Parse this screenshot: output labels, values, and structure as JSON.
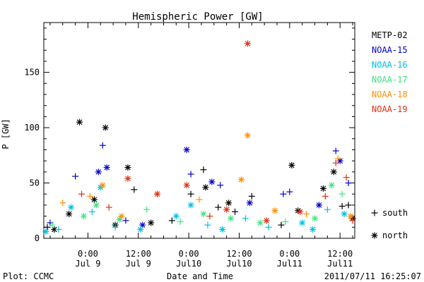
{
  "chart_data": {
    "type": "scatter",
    "title": "Hemispheric Power [GW]",
    "ylabel": "P [GW]",
    "xlabel": "Date and Time",
    "ylim": [
      0,
      195
    ],
    "xlim": [
      "2011-07-08 13:30",
      "2011-07-11 15:30"
    ],
    "x_unit": "date-time (UTC)",
    "yticks": [
      0,
      50,
      100,
      150
    ],
    "xticks": [
      {
        "x": "2011-07-09 00:00",
        "time": "0:00",
        "date": "Jul 9"
      },
      {
        "x": "2011-07-09 12:00",
        "time": "12:00",
        "date": "Jul 9"
      },
      {
        "x": "2011-07-10 00:00",
        "time": "0:00",
        "date": "Jul10"
      },
      {
        "x": "2011-07-10 12:00",
        "time": "12:00",
        "date": "Jul10"
      },
      {
        "x": "2011-07-11 00:00",
        "time": "0:00",
        "date": "Jul11"
      },
      {
        "x": "2011-07-11 12:00",
        "time": "12:00",
        "date": "Jul11"
      }
    ],
    "grid": false,
    "legend_position": "right",
    "series": [
      {
        "name": "METP-02",
        "color": "#000000",
        "points": [
          {
            "x": "2011-07-08 14:20",
            "y": 10,
            "marker": "south"
          },
          {
            "x": "2011-07-08 16:00",
            "y": 8,
            "marker": "north"
          },
          {
            "x": "2011-07-08 19:30",
            "y": 22,
            "marker": "north"
          },
          {
            "x": "2011-07-08 22:00",
            "y": 105,
            "marker": "north"
          },
          {
            "x": "2011-07-09 01:30",
            "y": 35,
            "marker": "north"
          },
          {
            "x": "2011-07-09 04:10",
            "y": 100,
            "marker": "north"
          },
          {
            "x": "2011-07-09 06:30",
            "y": 12,
            "marker": "north"
          },
          {
            "x": "2011-07-09 09:30",
            "y": 64,
            "marker": "north"
          },
          {
            "x": "2011-07-09 11:00",
            "y": 44,
            "marker": "south"
          },
          {
            "x": "2011-07-09 15:00",
            "y": 14,
            "marker": "north"
          },
          {
            "x": "2011-07-09 20:00",
            "y": 16,
            "marker": "south"
          },
          {
            "x": "2011-07-10 00:30",
            "y": 40,
            "marker": "south"
          },
          {
            "x": "2011-07-10 03:30",
            "y": 62,
            "marker": "south"
          },
          {
            "x": "2011-07-10 04:00",
            "y": 46,
            "marker": "north"
          },
          {
            "x": "2011-07-10 07:00",
            "y": 28,
            "marker": "south"
          },
          {
            "x": "2011-07-10 09:30",
            "y": 32,
            "marker": "north"
          },
          {
            "x": "2011-07-10 11:00",
            "y": 24,
            "marker": "south"
          },
          {
            "x": "2011-07-10 15:00",
            "y": 38,
            "marker": "south"
          },
          {
            "x": "2011-07-10 22:00",
            "y": 12,
            "marker": "south"
          },
          {
            "x": "2011-07-11 00:30",
            "y": 66,
            "marker": "north"
          },
          {
            "x": "2011-07-11 02:00",
            "y": 25,
            "marker": "north"
          },
          {
            "x": "2011-07-11 08:00",
            "y": 45,
            "marker": "north"
          },
          {
            "x": "2011-07-11 10:30",
            "y": 60,
            "marker": "north"
          },
          {
            "x": "2011-07-11 12:30",
            "y": 29,
            "marker": "south"
          },
          {
            "x": "2011-07-11 14:00",
            "y": 30,
            "marker": "south"
          },
          {
            "x": "2011-07-11 15:00",
            "y": 18,
            "marker": "north"
          }
        ]
      },
      {
        "name": "NOAA-15",
        "color": "#0000d0",
        "points": [
          {
            "x": "2011-07-08 15:00",
            "y": 14,
            "marker": "south"
          },
          {
            "x": "2011-07-08 21:00",
            "y": 56,
            "marker": "south"
          },
          {
            "x": "2011-07-09 02:30",
            "y": 60,
            "marker": "north"
          },
          {
            "x": "2011-07-09 03:30",
            "y": 84,
            "marker": "south"
          },
          {
            "x": "2011-07-09 04:30",
            "y": 64,
            "marker": "north"
          },
          {
            "x": "2011-07-09 09:00",
            "y": 16,
            "marker": "south"
          },
          {
            "x": "2011-07-09 13:00",
            "y": 12,
            "marker": "north"
          },
          {
            "x": "2011-07-09 23:30",
            "y": 80,
            "marker": "north"
          },
          {
            "x": "2011-07-10 00:30",
            "y": 58,
            "marker": "south"
          },
          {
            "x": "2011-07-10 05:30",
            "y": 51,
            "marker": "north"
          },
          {
            "x": "2011-07-10 07:30",
            "y": 48,
            "marker": "south"
          },
          {
            "x": "2011-07-10 14:30",
            "y": 32,
            "marker": "north"
          },
          {
            "x": "2011-07-10 22:30",
            "y": 40,
            "marker": "south"
          },
          {
            "x": "2011-07-11 00:00",
            "y": 42,
            "marker": "south"
          },
          {
            "x": "2011-07-11 07:00",
            "y": 30,
            "marker": "north"
          },
          {
            "x": "2011-07-11 11:00",
            "y": 79,
            "marker": "south"
          },
          {
            "x": "2011-07-11 12:00",
            "y": 70,
            "marker": "north"
          },
          {
            "x": "2011-07-11 14:00",
            "y": 50,
            "marker": "south"
          }
        ]
      },
      {
        "name": "NOAA-16",
        "color": "#00c0e0",
        "points": [
          {
            "x": "2011-07-08 14:00",
            "y": 6,
            "marker": "north"
          },
          {
            "x": "2011-07-08 17:00",
            "y": 8,
            "marker": "south"
          },
          {
            "x": "2011-07-08 20:00",
            "y": 28,
            "marker": "north"
          },
          {
            "x": "2011-07-09 01:00",
            "y": 24,
            "marker": "south"
          },
          {
            "x": "2011-07-09 03:00",
            "y": 46,
            "marker": "north"
          },
          {
            "x": "2011-07-09 06:30",
            "y": 10,
            "marker": "south"
          },
          {
            "x": "2011-07-09 12:30",
            "y": 8,
            "marker": "north"
          },
          {
            "x": "2011-07-09 21:00",
            "y": 20,
            "marker": "north"
          },
          {
            "x": "2011-07-10 00:30",
            "y": 30,
            "marker": "north"
          },
          {
            "x": "2011-07-10 04:30",
            "y": 12,
            "marker": "south"
          },
          {
            "x": "2011-07-10 08:00",
            "y": 8,
            "marker": "north"
          },
          {
            "x": "2011-07-10 13:30",
            "y": 18,
            "marker": "south"
          },
          {
            "x": "2011-07-10 19:00",
            "y": 10,
            "marker": "south"
          },
          {
            "x": "2011-07-11 03:00",
            "y": 14,
            "marker": "north"
          },
          {
            "x": "2011-07-11 05:30",
            "y": 8,
            "marker": "north"
          },
          {
            "x": "2011-07-11 09:00",
            "y": 26,
            "marker": "south"
          },
          {
            "x": "2011-07-11 13:00",
            "y": 22,
            "marker": "north"
          }
        ]
      },
      {
        "name": "NOAA-17",
        "color": "#40e080",
        "points": [
          {
            "x": "2011-07-08 15:30",
            "y": 12,
            "marker": "south"
          },
          {
            "x": "2011-07-08 23:00",
            "y": 20,
            "marker": "north"
          },
          {
            "x": "2011-07-09 02:00",
            "y": 30,
            "marker": "north"
          },
          {
            "x": "2011-07-09 07:30",
            "y": 17,
            "marker": "north"
          },
          {
            "x": "2011-07-09 14:00",
            "y": 26,
            "marker": "south"
          },
          {
            "x": "2011-07-09 22:00",
            "y": 15,
            "marker": "south"
          },
          {
            "x": "2011-07-10 03:30",
            "y": 22,
            "marker": "north"
          },
          {
            "x": "2011-07-10 10:00",
            "y": 18,
            "marker": "north"
          },
          {
            "x": "2011-07-10 17:00",
            "y": 14,
            "marker": "north"
          },
          {
            "x": "2011-07-10 23:00",
            "y": 15,
            "marker": "south"
          },
          {
            "x": "2011-07-11 06:00",
            "y": 18,
            "marker": "north"
          },
          {
            "x": "2011-07-11 10:00",
            "y": 48,
            "marker": "north"
          },
          {
            "x": "2011-07-11 12:30",
            "y": 40,
            "marker": "south"
          }
        ]
      },
      {
        "name": "NOAA-18",
        "color": "#ff9000",
        "points": [
          {
            "x": "2011-07-08 18:00",
            "y": 32,
            "marker": "south"
          },
          {
            "x": "2011-07-09 00:30",
            "y": 38,
            "marker": "south"
          },
          {
            "x": "2011-07-09 03:30",
            "y": 48,
            "marker": "north"
          },
          {
            "x": "2011-07-09 08:00",
            "y": 20,
            "marker": "north"
          },
          {
            "x": "2011-07-09 16:30",
            "y": 40,
            "marker": "south"
          },
          {
            "x": "2011-07-10 02:30",
            "y": 35,
            "marker": "south"
          },
          {
            "x": "2011-07-10 12:30",
            "y": 53,
            "marker": "north"
          },
          {
            "x": "2011-07-10 14:00",
            "y": 93,
            "marker": "north"
          },
          {
            "x": "2011-07-10 20:30",
            "y": 25,
            "marker": "north"
          },
          {
            "x": "2011-07-11 04:00",
            "y": 22,
            "marker": "south"
          },
          {
            "x": "2011-07-11 11:30",
            "y": 72,
            "marker": "south"
          },
          {
            "x": "2011-07-11 14:30",
            "y": 20,
            "marker": "north"
          }
        ]
      },
      {
        "name": "NOAA-19",
        "color": "#e03010",
        "points": [
          {
            "x": "2011-07-08 22:30",
            "y": 40,
            "marker": "south"
          },
          {
            "x": "2011-07-09 05:00",
            "y": 28,
            "marker": "south"
          },
          {
            "x": "2011-07-09 09:30",
            "y": 54,
            "marker": "north"
          },
          {
            "x": "2011-07-09 16:30",
            "y": 40,
            "marker": "north"
          },
          {
            "x": "2011-07-09 23:30",
            "y": 48,
            "marker": "north"
          },
          {
            "x": "2011-07-10 05:00",
            "y": 20,
            "marker": "south"
          },
          {
            "x": "2011-07-10 09:00",
            "y": 26,
            "marker": "north"
          },
          {
            "x": "2011-07-10 14:00",
            "y": 176,
            "marker": "north"
          },
          {
            "x": "2011-07-10 18:30",
            "y": 16,
            "marker": "north"
          },
          {
            "x": "2011-07-11 02:30",
            "y": 24,
            "marker": "north"
          },
          {
            "x": "2011-07-11 08:30",
            "y": 38,
            "marker": "south"
          },
          {
            "x": "2011-07-11 11:00",
            "y": 68,
            "marker": "south"
          },
          {
            "x": "2011-07-11 13:30",
            "y": 55,
            "marker": "south"
          },
          {
            "x": "2011-07-11 15:00",
            "y": 16,
            "marker": "south"
          }
        ]
      }
    ],
    "marker_legend": [
      {
        "symbol": "+",
        "label": "south"
      },
      {
        "symbol": "*",
        "label": "north"
      }
    ]
  },
  "footer": {
    "left": "Plot: CCMC",
    "right": "2011/07/11 16:25:07"
  }
}
